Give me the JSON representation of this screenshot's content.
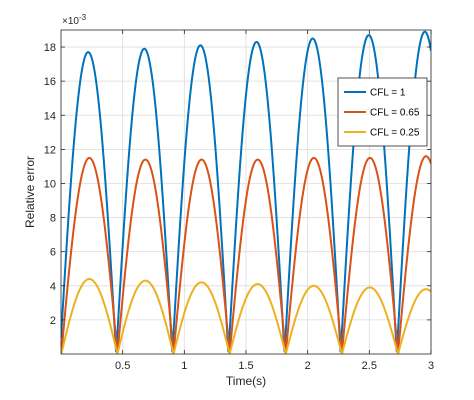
{
  "chart_data": {
    "type": "line",
    "xlabel": "Time(s)",
    "ylabel": "Relative error",
    "y_exponent_label": "×10",
    "y_exponent_power": "-3",
    "xlim": [
      0,
      3
    ],
    "ylim": [
      0,
      0.019
    ],
    "x_ticks": [
      0.5,
      1,
      1.5,
      2,
      2.5,
      3
    ],
    "x_tick_labels": [
      "0.5",
      "1",
      "1.5",
      "2",
      "2.5",
      "3"
    ],
    "y_ticks": [
      0.002,
      0.004,
      0.006,
      0.008,
      0.01,
      0.012,
      0.014,
      0.016,
      0.018
    ],
    "y_tick_labels": [
      "2",
      "4",
      "6",
      "8",
      "10",
      "12",
      "14",
      "16",
      "18"
    ],
    "grid": true,
    "legend_position": "top-right",
    "series": [
      {
        "name": "CFL = 1",
        "color": "#0072BD",
        "period": 0.455,
        "peaks": [
          {
            "x": 0.22,
            "y": 0.0177
          },
          {
            "x": 0.675,
            "y": 0.0179
          },
          {
            "x": 1.13,
            "y": 0.0181
          },
          {
            "x": 1.585,
            "y": 0.0183
          },
          {
            "x": 2.04,
            "y": 0.0185
          },
          {
            "x": 2.495,
            "y": 0.0187
          },
          {
            "x": 2.95,
            "y": 0.0189
          }
        ]
      },
      {
        "name": "CFL = 0.65",
        "color": "#D95319",
        "period": 0.455,
        "peaks": [
          {
            "x": 0.23,
            "y": 0.0115
          },
          {
            "x": 0.685,
            "y": 0.0114
          },
          {
            "x": 1.14,
            "y": 0.0114
          },
          {
            "x": 1.595,
            "y": 0.0114
          },
          {
            "x": 2.05,
            "y": 0.0115
          },
          {
            "x": 2.505,
            "y": 0.0115
          },
          {
            "x": 2.96,
            "y": 0.0116
          }
        ]
      },
      {
        "name": "CFL = 0.25",
        "color": "#EDB120",
        "period": 0.455,
        "peaks": [
          {
            "x": 0.23,
            "y": 0.0044
          },
          {
            "x": 0.685,
            "y": 0.0043
          },
          {
            "x": 1.14,
            "y": 0.0042
          },
          {
            "x": 1.595,
            "y": 0.0041
          },
          {
            "x": 2.05,
            "y": 0.004
          },
          {
            "x": 2.505,
            "y": 0.0039
          },
          {
            "x": 2.96,
            "y": 0.0038
          }
        ]
      }
    ]
  }
}
